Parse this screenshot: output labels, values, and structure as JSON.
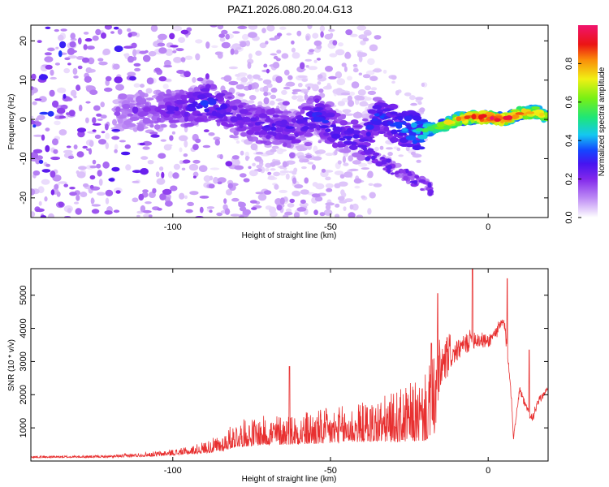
{
  "title": "PAZ1.2026.080.20.04.G13",
  "chart_data": [
    {
      "type": "heatmap",
      "name": "spectrogram",
      "xlabel": "Height of straight line (km)",
      "ylabel": "Frequency (Hz)",
      "xlim": [
        -145,
        19
      ],
      "ylim": [
        -25,
        24
      ],
      "xticks": [
        -100,
        -50,
        0
      ],
      "yticks": [
        -20,
        -10,
        0,
        10,
        20
      ],
      "colorbar": {
        "label": "Normalized spectral amplitude",
        "range": [
          0.0,
          1.0
        ],
        "ticks": [
          0.0,
          0.2,
          0.4,
          0.6,
          0.8
        ],
        "tick_labels": [
          "0.0",
          "0.2",
          "0.4",
          "0.6",
          "0.8"
        ]
      },
      "ridge": [
        {
          "x": -117,
          "f": 1.5,
          "a": 0.12
        },
        {
          "x": -105,
          "f": 2.5,
          "a": 0.18
        },
        {
          "x": -95,
          "f": 3.0,
          "a": 0.25
        },
        {
          "x": -88,
          "f": 4.5,
          "a": 0.3
        },
        {
          "x": -80,
          "f": 1.0,
          "a": 0.22
        },
        {
          "x": -72,
          "f": -1.5,
          "a": 0.24
        },
        {
          "x": -62,
          "f": -2.5,
          "a": 0.25
        },
        {
          "x": -55,
          "f": 1.5,
          "a": 0.28
        },
        {
          "x": -48,
          "f": -3.0,
          "a": 0.27
        },
        {
          "x": -40,
          "f": -5.5,
          "a": 0.25
        },
        {
          "x": -35,
          "f": 1.5,
          "a": 0.3
        },
        {
          "x": -28,
          "f": -2.0,
          "a": 0.33
        },
        {
          "x": -22,
          "f": -3.0,
          "a": 0.42
        },
        {
          "x": -16,
          "f": -2.0,
          "a": 0.58
        },
        {
          "x": -10,
          "f": 0.0,
          "a": 0.7
        },
        {
          "x": -5,
          "f": 0.5,
          "a": 0.8
        },
        {
          "x": 0,
          "f": 0.5,
          "a": 0.9
        },
        {
          "x": 5,
          "f": 0.0,
          "a": 0.85
        },
        {
          "x": 10,
          "f": 1.5,
          "a": 0.75
        },
        {
          "x": 15,
          "f": 2.0,
          "a": 0.7
        },
        {
          "x": 19,
          "f": 0.5,
          "a": 0.65
        }
      ]
    },
    {
      "type": "line",
      "name": "snr",
      "xlabel": "Height of straight line (km)",
      "ylabel": "SNR (10 * v/v)",
      "xlim": [
        -145,
        19
      ],
      "ylim": [
        0,
        5800
      ],
      "xticks": [
        -100,
        -50,
        0
      ],
      "yticks": [
        1000,
        2000,
        3000,
        4000,
        5000
      ],
      "color": "#e83030",
      "envelope": [
        {
          "x": -145,
          "base": 120,
          "amp": 60
        },
        {
          "x": -120,
          "base": 130,
          "amp": 70
        },
        {
          "x": -105,
          "base": 200,
          "amp": 150
        },
        {
          "x": -95,
          "base": 280,
          "amp": 220
        },
        {
          "x": -85,
          "base": 450,
          "amp": 500
        },
        {
          "x": -80,
          "base": 700,
          "amp": 800
        },
        {
          "x": -70,
          "base": 800,
          "amp": 900
        },
        {
          "x": -60,
          "base": 850,
          "amp": 1000
        },
        {
          "x": -50,
          "base": 900,
          "amp": 1100
        },
        {
          "x": -40,
          "base": 1000,
          "amp": 1200
        },
        {
          "x": -30,
          "base": 1100,
          "amp": 1500
        },
        {
          "x": -20,
          "base": 1300,
          "amp": 2000
        },
        {
          "x": -17,
          "base": 1700,
          "amp": 2500
        },
        {
          "x": -15,
          "base": 2800,
          "amp": 1500
        },
        {
          "x": -10,
          "base": 3300,
          "amp": 1200
        },
        {
          "x": -5,
          "base": 3700,
          "amp": 1300
        },
        {
          "x": 0,
          "base": 3600,
          "amp": 800
        },
        {
          "x": 5,
          "base": 4200,
          "amp": 900
        },
        {
          "x": 7,
          "base": 2500,
          "amp": 800
        },
        {
          "x": 8,
          "base": 700,
          "amp": 300
        },
        {
          "x": 10,
          "base": 2200,
          "amp": 400
        },
        {
          "x": 12,
          "base": 1600,
          "amp": 500
        },
        {
          "x": 14,
          "base": 1300,
          "amp": 600
        },
        {
          "x": 16,
          "base": 1800,
          "amp": 500
        },
        {
          "x": 19,
          "base": 2200,
          "amp": 200
        }
      ],
      "peaks": [
        {
          "x": -5,
          "y": 5850
        },
        {
          "x": 6,
          "y": 5500
        },
        {
          "x": -16,
          "y": 5050
        },
        {
          "x": -18,
          "y": 3550
        },
        {
          "x": -63,
          "y": 2850
        },
        {
          "x": 13,
          "y": 3350
        }
      ]
    }
  ]
}
